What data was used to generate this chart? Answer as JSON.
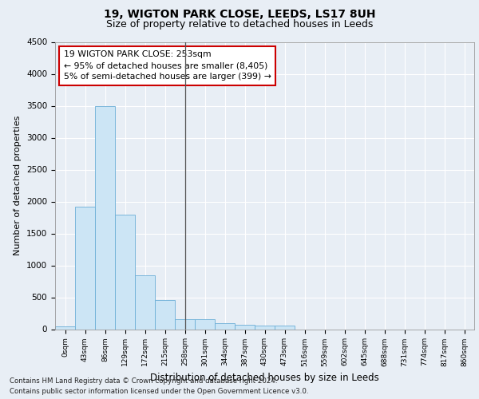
{
  "title1": "19, WIGTON PARK CLOSE, LEEDS, LS17 8UH",
  "title2": "Size of property relative to detached houses in Leeds",
  "xlabel": "Distribution of detached houses by size in Leeds",
  "ylabel": "Number of detached properties",
  "bar_labels": [
    "0sqm",
    "43sqm",
    "86sqm",
    "129sqm",
    "172sqm",
    "215sqm",
    "258sqm",
    "301sqm",
    "344sqm",
    "387sqm",
    "430sqm",
    "473sqm",
    "516sqm",
    "559sqm",
    "602sqm",
    "645sqm",
    "688sqm",
    "731sqm",
    "774sqm",
    "817sqm",
    "860sqm"
  ],
  "bar_values": [
    50,
    1920,
    3500,
    1790,
    850,
    460,
    160,
    160,
    95,
    70,
    55,
    55,
    0,
    0,
    0,
    0,
    0,
    0,
    0,
    0,
    0
  ],
  "bar_color": "#cce5f5",
  "bar_edge_color": "#6aaed6",
  "vline_x": 6.0,
  "ylim": [
    0,
    4500
  ],
  "yticks": [
    0,
    500,
    1000,
    1500,
    2000,
    2500,
    3000,
    3500,
    4000,
    4500
  ],
  "annotation_text": "19 WIGTON PARK CLOSE: 253sqm\n← 95% of detached houses are smaller (8,405)\n5% of semi-detached houses are larger (399) →",
  "annotation_box_color": "#ffffff",
  "annotation_box_edgecolor": "#cc0000",
  "footer1": "Contains HM Land Registry data © Crown copyright and database right 2024.",
  "footer2": "Contains public sector information licensed under the Open Government Licence v3.0.",
  "bg_color": "#e8eef5",
  "plot_bg_color": "#e8eef5",
  "grid_color": "#ffffff"
}
